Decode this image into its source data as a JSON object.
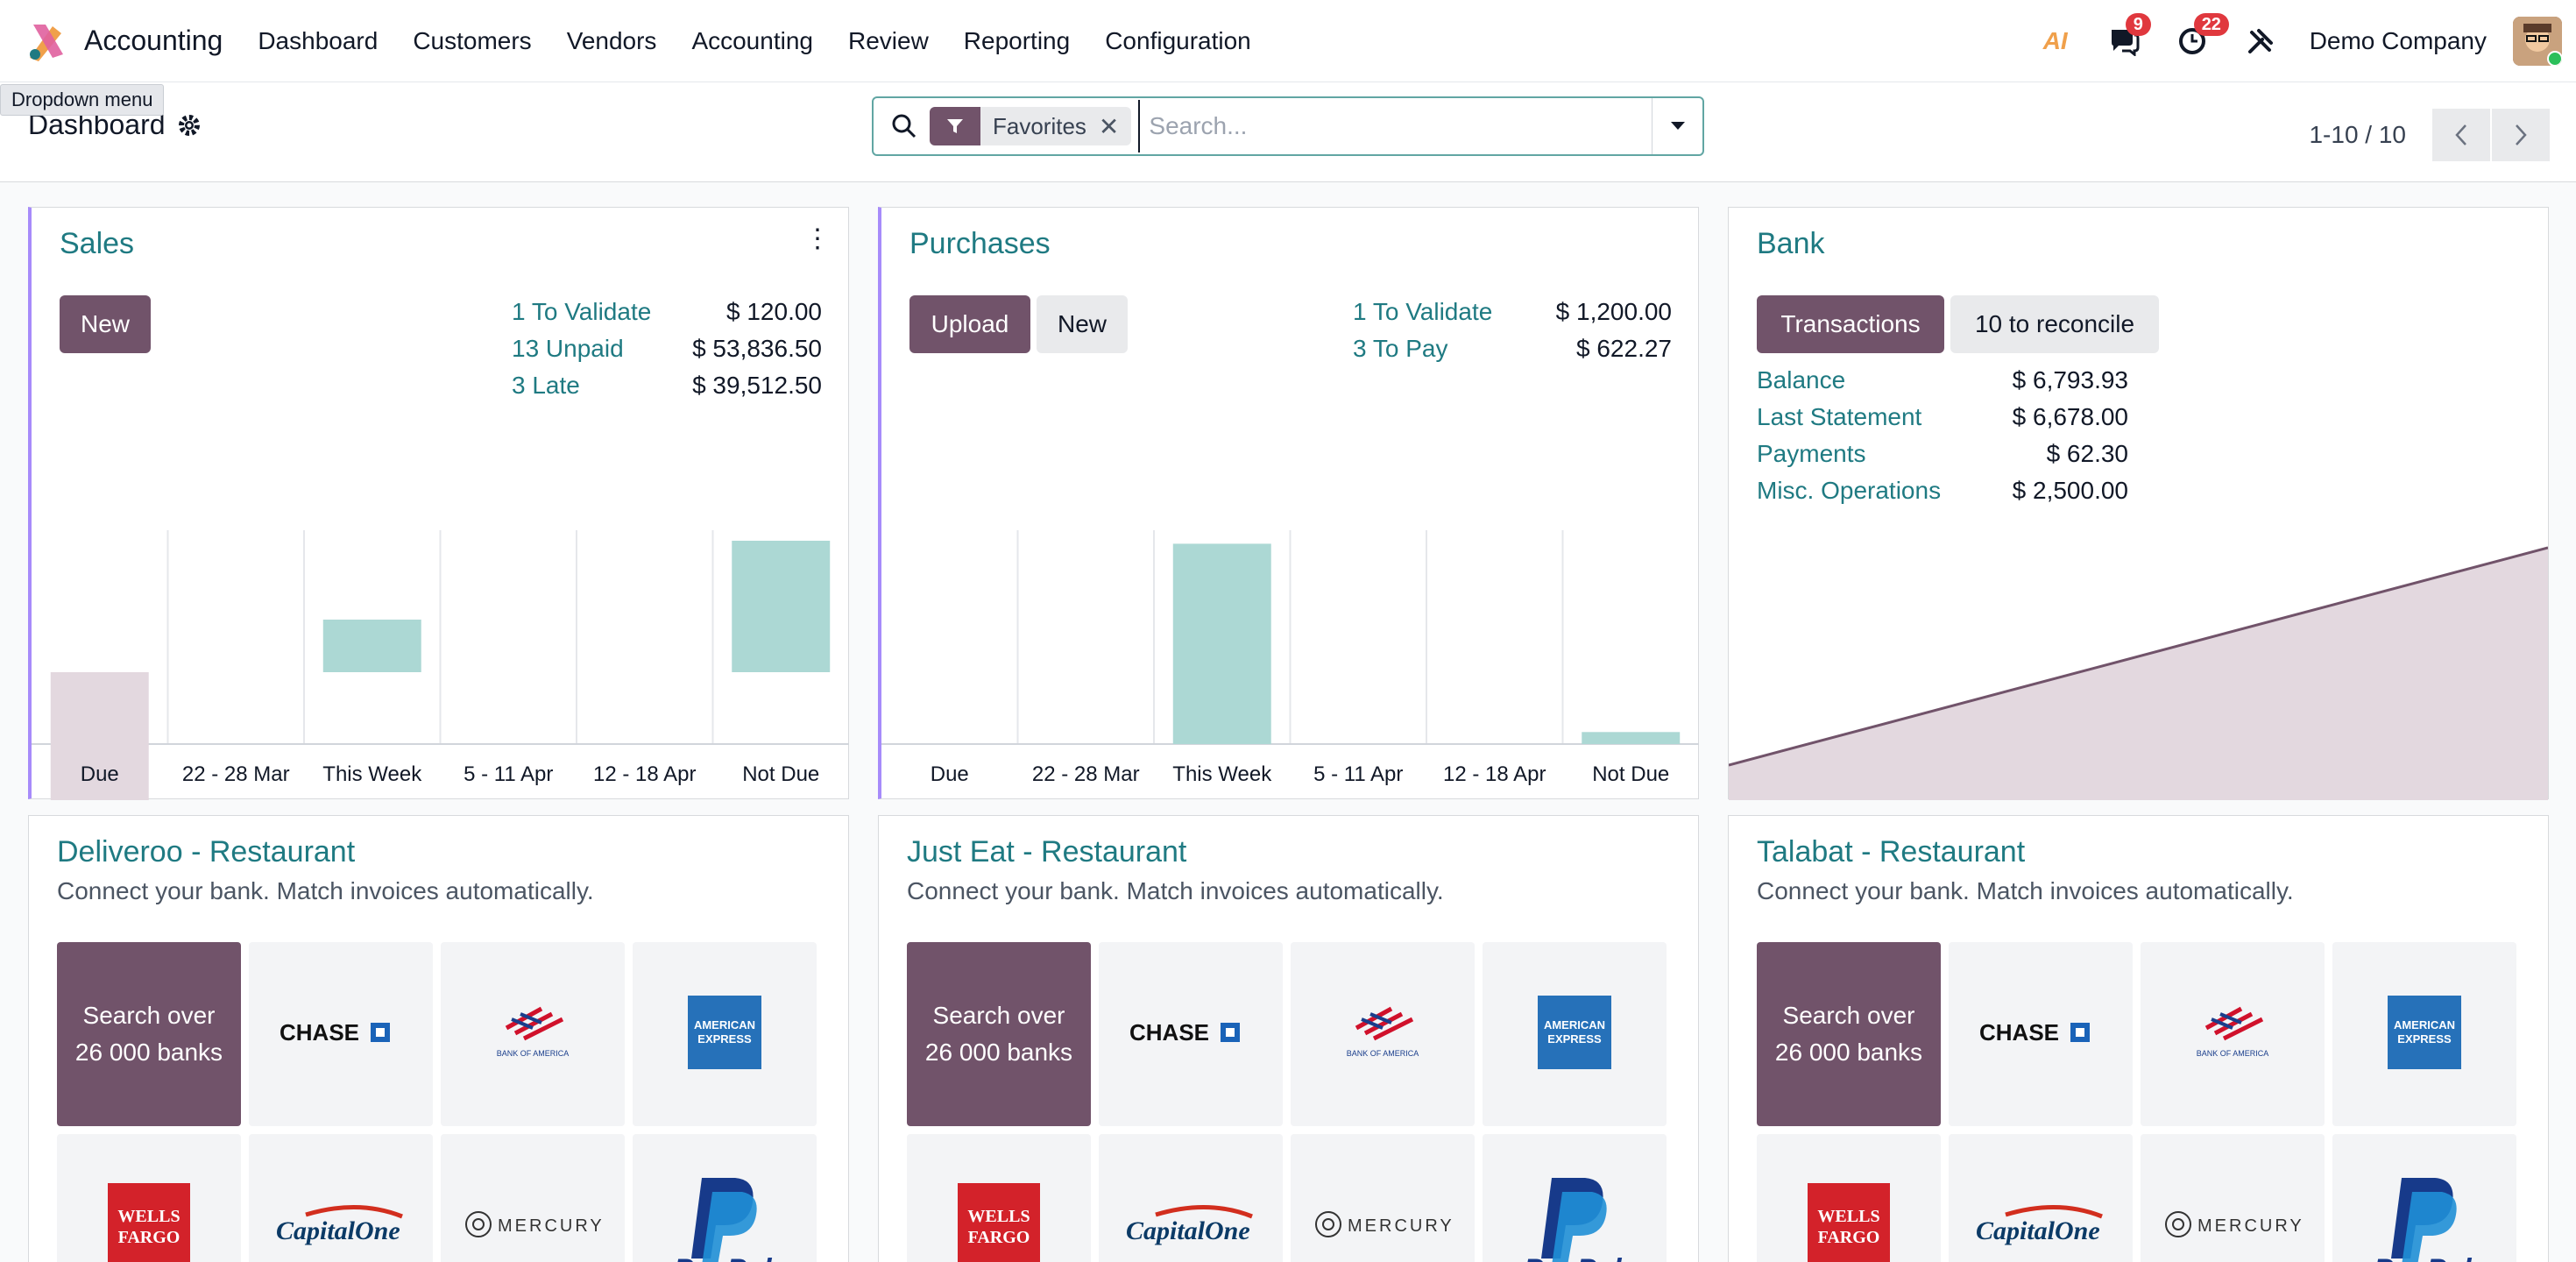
{
  "navbar": {
    "app_name": "Accounting",
    "menu": [
      "Dashboard",
      "Customers",
      "Vendors",
      "Accounting",
      "Review",
      "Reporting",
      "Configuration"
    ],
    "messages_count": "9",
    "activities_count": "22",
    "company": "Demo Company",
    "ai_icon_text": "AI"
  },
  "tooltip": "Dropdown menu",
  "control": {
    "title": "Dashboard",
    "facet_label": "Favorites",
    "search_placeholder": "Search...",
    "pager": "1-10 / 10"
  },
  "colors": {
    "brand": "#71536a",
    "accent": "#1f7a82",
    "bar_teal": "#acd8d4",
    "bar_mauve": "#e3d8df"
  },
  "sales": {
    "title": "Sales",
    "new_label": "New",
    "stats": [
      {
        "label": "1 To Validate",
        "value": "$ 120.00"
      },
      {
        "label": "13 Unpaid",
        "value": "$ 53,836.50"
      },
      {
        "label": "3 Late",
        "value": "$ 39,512.50"
      }
    ]
  },
  "purchases": {
    "title": "Purchases",
    "upload_label": "Upload",
    "new_label": "New",
    "stats": [
      {
        "label": "1 To Validate",
        "value": "$ 1,200.00"
      },
      {
        "label": "3 To Pay",
        "value": "$ 622.27"
      }
    ]
  },
  "bank": {
    "title": "Bank",
    "transactions_label": "Transactions",
    "reconcile_label": "10 to reconcile",
    "stats": [
      {
        "label": "Balance",
        "value": "$ 6,793.93"
      },
      {
        "label": "Last Statement",
        "value": "$ 6,678.00"
      },
      {
        "label": "Payments",
        "value": "$ 62.30"
      },
      {
        "label": "Misc. Operations",
        "value": "$ 2,500.00"
      }
    ]
  },
  "journals": [
    {
      "title": "Deliveroo - Restaurant",
      "subtitle": "Connect your bank. Match invoices automatically."
    },
    {
      "title": "Just Eat - Restaurant",
      "subtitle": "Connect your bank. Match invoices automatically."
    },
    {
      "title": "Talabat - Restaurant",
      "subtitle": "Connect your bank. Match invoices automatically."
    }
  ],
  "bank_tiles": {
    "search_label": "Search over 26 000 banks",
    "banks": [
      "CHASE",
      "BANK OF AMERICA",
      "AMERICAN EXPRESS",
      "WELLS FARGO",
      "Capital One",
      "MERCURY",
      "PayPal"
    ]
  },
  "chart_data": [
    {
      "type": "bar",
      "name": "Sales",
      "categories": [
        "Due",
        "22 - 28 Mar",
        "This Week",
        "5 - 11 Apr",
        "12 - 18 Apr",
        "Not Due"
      ],
      "values": [
        -1.5,
        0,
        0.6,
        0,
        0,
        1.5
      ],
      "bar_colors": [
        "#e3d8df",
        "#acd8d4",
        "#acd8d4",
        "#acd8d4",
        "#acd8d4",
        "#acd8d4"
      ],
      "ylim": [
        -2.5,
        1.5
      ]
    },
    {
      "type": "bar",
      "name": "Purchases",
      "categories": [
        "Due",
        "22 - 28 Mar",
        "This Week",
        "5 - 11 Apr",
        "12 - 18 Apr",
        "Not Due"
      ],
      "values": [
        0,
        0,
        1,
        0,
        0,
        0.06
      ],
      "ylim": [
        0,
        1.05
      ]
    },
    {
      "type": "area",
      "name": "Bank",
      "values": [
        0,
        1
      ],
      "ylim": [
        0,
        1
      ]
    }
  ]
}
